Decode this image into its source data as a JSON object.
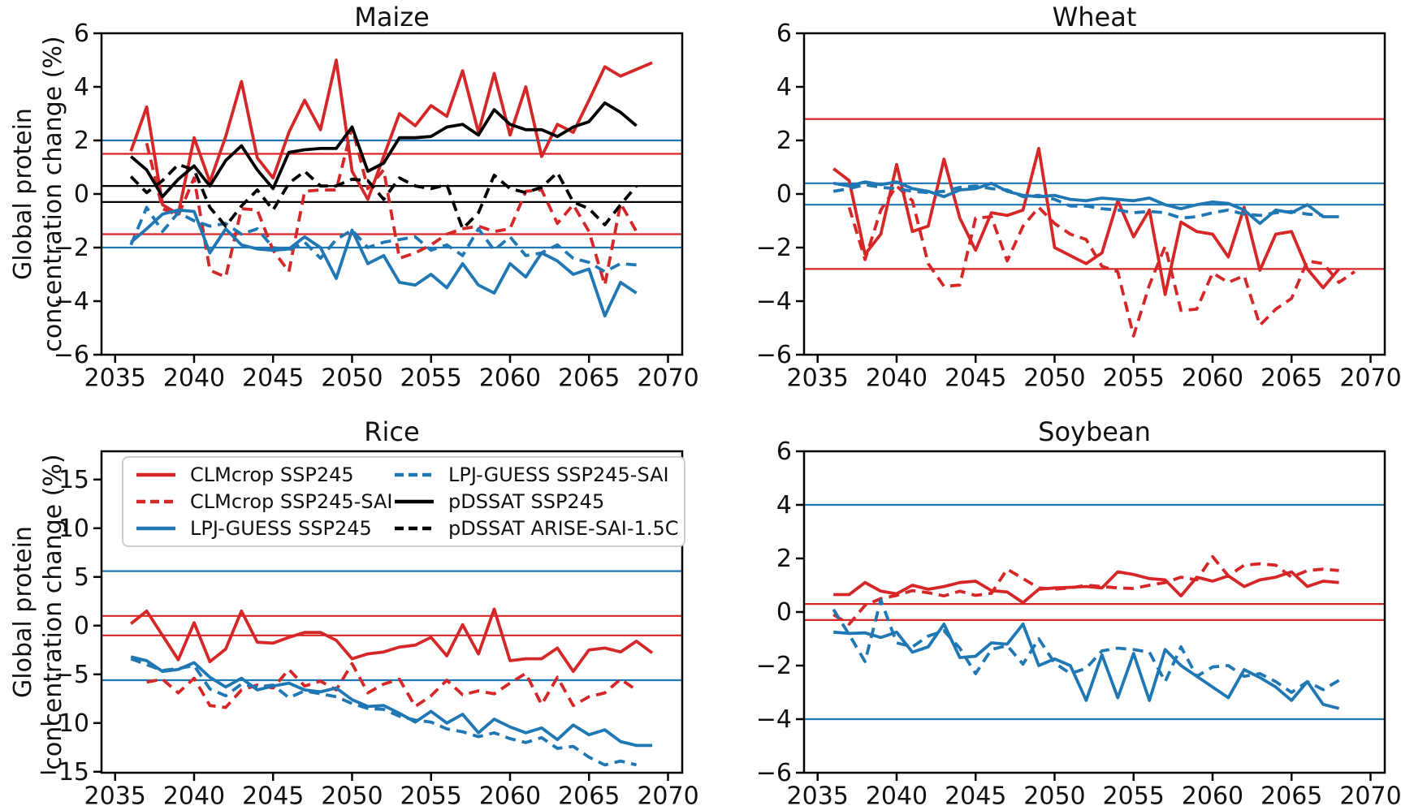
{
  "figure": {
    "background": "#ffffff",
    "ylabel_line1": "Global protein",
    "ylabel_line2": "concentration change (%)"
  },
  "colors": {
    "red": "#d62728",
    "blue": "#1f77b4",
    "black": "#000000"
  },
  "legend": {
    "position": "rice-panel-top",
    "entries": [
      {
        "label": "CLMcrop SSP245",
        "color": "red",
        "style": "solid"
      },
      {
        "label": "CLMcrop SSP245-SAI",
        "color": "red",
        "style": "dashed"
      },
      {
        "label": "LPJ-GUESS SSP245",
        "color": "blue",
        "style": "solid"
      },
      {
        "label": "LPJ-GUESS SSP245-SAI",
        "color": "blue",
        "style": "dashed"
      },
      {
        "label": "pDSSAT SSP245",
        "color": "black",
        "style": "solid"
      },
      {
        "label": "pDSSAT ARISE-SAI-1.5C",
        "color": "black",
        "style": "dashed"
      }
    ]
  },
  "x_axis": {
    "lim": [
      2034.14,
      2070.9
    ],
    "tick_values": [
      2035,
      2040,
      2045,
      2050,
      2055,
      2060,
      2065,
      2070
    ],
    "tick_labels": [
      "2035",
      "2040",
      "2045",
      "2050",
      "2055",
      "2060",
      "2065",
      "2070"
    ]
  },
  "years": [
    2036,
    2037,
    2038,
    2039,
    2040,
    2041,
    2042,
    2043,
    2044,
    2045,
    2046,
    2047,
    2048,
    2049,
    2050,
    2051,
    2052,
    2053,
    2054,
    2055,
    2056,
    2057,
    2058,
    2059,
    2060,
    2061,
    2062,
    2063,
    2064,
    2065,
    2066,
    2067,
    2068,
    2069
  ],
  "chart_data": [
    {
      "id": "maize",
      "title": "Maize",
      "type": "line",
      "grid": {
        "row": 0,
        "col": 0
      },
      "y_axis": {
        "lim": [
          -6,
          6
        ],
        "tick_values": [
          6,
          4,
          2,
          0,
          -2,
          -4,
          -6
        ],
        "tick_labels": [
          "6",
          "4",
          "2",
          "0",
          "−2",
          "−4",
          "−6"
        ]
      },
      "ref_lines": [
        {
          "color": "blue",
          "value": 2.0
        },
        {
          "color": "red",
          "value": 1.5
        },
        {
          "color": "black",
          "value": 0.3
        },
        {
          "color": "black",
          "value": -0.3
        },
        {
          "color": "red",
          "value": -1.5
        },
        {
          "color": "blue",
          "value": -2.0
        }
      ],
      "series": [
        {
          "name": "CLMcrop SSP245",
          "color": "red",
          "style": "solid",
          "values": [
            1.6,
            3.25,
            -0.4,
            -0.75,
            2.1,
            0.45,
            2.15,
            4.2,
            1.35,
            0.6,
            2.3,
            3.5,
            2.4,
            5.0,
            0.85,
            -0.2,
            1.4,
            3.0,
            2.55,
            3.3,
            2.9,
            4.6,
            2.3,
            4.5,
            2.2,
            4.0,
            1.4,
            2.6,
            2.3,
            3.5,
            4.75,
            4.4,
            4.65,
            4.9
          ]
        },
        {
          "name": "CLMcrop SSP245-SAI",
          "color": "red",
          "style": "dashed",
          "values": [
            null,
            1.9,
            -0.55,
            -0.8,
            0.6,
            -2.85,
            -3.1,
            -0.55,
            -0.6,
            -2.1,
            -2.9,
            0.1,
            0.15,
            0.15,
            2.5,
            0.2,
            0.9,
            -2.4,
            -2.2,
            -1.9,
            -1.5,
            -1.3,
            -1.2,
            -1.4,
            -1.3,
            0.1,
            0.15,
            -1.1,
            -0.4,
            -1.4,
            -3.4,
            -0.35,
            -1.4,
            null
          ]
        },
        {
          "name": "LPJ-GUESS SSP245",
          "color": "blue",
          "style": "solid",
          "values": [
            -1.8,
            -1.3,
            -0.75,
            -0.6,
            -0.65,
            -2.2,
            -1.3,
            -1.9,
            -2.05,
            -2.1,
            -2.05,
            -1.6,
            -2.0,
            -3.15,
            -1.35,
            -2.6,
            -2.3,
            -3.3,
            -3.4,
            -3.0,
            -3.5,
            -2.6,
            -3.4,
            -3.7,
            -2.6,
            -3.1,
            -2.2,
            -2.5,
            -3.0,
            -2.8,
            -4.55,
            -3.3,
            -3.7,
            null
          ]
        },
        {
          "name": "LPJ-GUESS SSP245-SAI",
          "color": "blue",
          "style": "dashed",
          "values": [
            -1.9,
            -0.5,
            -1.4,
            -0.7,
            -1.0,
            -1.2,
            -1.1,
            -1.5,
            -1.3,
            -2.0,
            -2.1,
            -1.8,
            -2.4,
            -1.7,
            -1.35,
            -2.0,
            -1.8,
            -1.7,
            -1.6,
            -2.1,
            -1.9,
            -2.3,
            -1.3,
            -2.1,
            -1.6,
            -2.3,
            -2.2,
            -1.9,
            -2.4,
            -2.55,
            -2.9,
            -2.6,
            -2.65,
            null
          ]
        },
        {
          "name": "pDSSAT SSP245",
          "color": "black",
          "style": "solid",
          "values": [
            1.4,
            0.9,
            -0.1,
            0.55,
            1.05,
            0.3,
            1.25,
            1.8,
            0.9,
            0.2,
            1.55,
            1.65,
            1.7,
            1.7,
            2.5,
            0.85,
            1.15,
            2.1,
            2.1,
            2.15,
            2.5,
            2.6,
            2.2,
            3.15,
            2.6,
            2.4,
            2.4,
            2.15,
            2.5,
            2.7,
            3.4,
            3.05,
            2.55,
            null
          ]
        },
        {
          "name": "pDSSAT ARISE-SAI-1.5C",
          "color": "black",
          "style": "dashed",
          "values": [
            0.65,
            0.05,
            0.5,
            1.1,
            0.9,
            -0.5,
            -1.2,
            -0.45,
            0.15,
            -0.6,
            0.4,
            0.85,
            0.3,
            0.3,
            0.55,
            0.5,
            -0.2,
            0.6,
            0.3,
            0.2,
            0.35,
            -1.3,
            -0.7,
            0.7,
            0.2,
            0.05,
            0.25,
            0.8,
            -0.3,
            -0.55,
            -1.15,
            -0.4,
            0.3,
            null
          ]
        }
      ]
    },
    {
      "id": "wheat",
      "title": "Wheat",
      "type": "line",
      "grid": {
        "row": 0,
        "col": 1
      },
      "y_axis": {
        "lim": [
          -6,
          6
        ],
        "tick_values": [
          6,
          4,
          2,
          0,
          -2,
          -4,
          -6
        ],
        "tick_labels": [
          "6",
          "4",
          "2",
          "0",
          "−2",
          "−4",
          "−6"
        ]
      },
      "ref_lines": [
        {
          "color": "red",
          "value": 2.8
        },
        {
          "color": "blue",
          "value": 0.4
        },
        {
          "color": "blue",
          "value": -0.4
        },
        {
          "color": "red",
          "value": -2.8
        }
      ],
      "series": [
        {
          "name": "CLMcrop SSP245",
          "color": "red",
          "style": "solid",
          "values": [
            0.95,
            0.5,
            -2.25,
            -1.5,
            1.1,
            -1.4,
            -1.2,
            1.3,
            -0.9,
            -2.1,
            -0.7,
            -0.8,
            -0.6,
            1.7,
            -2.0,
            -2.3,
            -2.6,
            -2.2,
            -0.25,
            -1.6,
            -0.6,
            -3.75,
            -1.05,
            -1.4,
            -1.5,
            -2.35,
            -0.5,
            -2.85,
            -1.5,
            -1.4,
            -2.8,
            -3.5,
            -2.8,
            null
          ]
        },
        {
          "name": "CLMcrop SSP245-SAI",
          "color": "red",
          "style": "dashed",
          "values": [
            null,
            -0.5,
            -2.45,
            -0.6,
            0.3,
            -0.25,
            -2.6,
            -3.45,
            -3.4,
            -0.9,
            -0.85,
            -2.5,
            -1.2,
            -0.5,
            -1.1,
            -1.5,
            -1.7,
            -2.7,
            -2.9,
            -5.3,
            -3.4,
            -1.95,
            -4.35,
            -4.3,
            -2.95,
            -3.3,
            -3.05,
            -4.9,
            -4.3,
            -3.9,
            -2.5,
            -2.6,
            -3.3,
            -2.9
          ]
        },
        {
          "name": "LPJ-GUESS SSP245",
          "color": "blue",
          "style": "solid",
          "values": [
            0.4,
            0.3,
            0.45,
            0.35,
            0.45,
            0.2,
            0.1,
            -0.1,
            0.15,
            0.2,
            0.4,
            0.1,
            -0.05,
            -0.1,
            -0.05,
            -0.2,
            -0.25,
            -0.15,
            -0.2,
            -0.25,
            -0.15,
            -0.4,
            -0.55,
            -0.4,
            -0.3,
            -0.35,
            -0.6,
            -1.1,
            -0.6,
            -0.7,
            -0.4,
            -0.85,
            -0.85,
            null
          ]
        },
        {
          "name": "LPJ-GUESS SSP245-SAI",
          "color": "blue",
          "style": "dashed",
          "values": [
            0.1,
            0.2,
            0.35,
            0.25,
            0.2,
            0.1,
            0.05,
            0.1,
            0.25,
            0.3,
            0.2,
            0.15,
            -0.1,
            -0.05,
            -0.2,
            -0.45,
            -0.45,
            -0.55,
            -0.6,
            -0.7,
            -0.65,
            -0.7,
            -0.9,
            -0.85,
            -0.7,
            -0.6,
            -0.75,
            -0.8,
            -0.7,
            -0.65,
            -0.75,
            -0.8,
            null,
            null
          ]
        }
      ]
    },
    {
      "id": "rice",
      "title": "Rice",
      "type": "line",
      "grid": {
        "row": 1,
        "col": 0
      },
      "y_axis": {
        "lim": [
          -15.1,
          17.9
        ],
        "tick_values": [
          15,
          10,
          5,
          0,
          -5,
          -10,
          -15
        ],
        "tick_labels": [
          "15",
          "10",
          "5",
          "0",
          "−5",
          "−10",
          "−15"
        ]
      },
      "ref_lines": [
        {
          "color": "blue",
          "value": 5.6
        },
        {
          "color": "red",
          "value": 1.0
        },
        {
          "color": "red",
          "value": -1.0
        },
        {
          "color": "blue",
          "value": -5.6
        }
      ],
      "series": [
        {
          "name": "CLMcrop SSP245",
          "color": "red",
          "style": "solid",
          "values": [
            0.2,
            1.5,
            -1.0,
            -3.5,
            0.3,
            -3.7,
            -2.4,
            1.5,
            -1.7,
            -1.8,
            -1.2,
            -0.7,
            -0.7,
            -1.5,
            -3.4,
            -2.9,
            -2.7,
            -2.2,
            -2.0,
            -1.2,
            -3.1,
            0.1,
            -2.9,
            1.7,
            -3.6,
            -3.4,
            -3.4,
            -2.3,
            -4.7,
            -2.5,
            -2.3,
            -2.7,
            -1.6,
            -2.8
          ]
        },
        {
          "name": "CLMcrop SSP245-SAI",
          "color": "red",
          "style": "dashed",
          "values": [
            null,
            -5.8,
            -5.5,
            -6.9,
            -5.4,
            -8.2,
            -8.4,
            -6.6,
            -6.1,
            -6.4,
            -4.5,
            -6.2,
            -5.7,
            -6.6,
            -3.9,
            -6.9,
            -6.0,
            -5.5,
            -8.3,
            -7.2,
            -5.6,
            -7.1,
            -6.7,
            -7.0,
            -5.9,
            -4.9,
            -8.1,
            -5.3,
            -8.2,
            -7.3,
            -6.9,
            -5.5,
            -6.6,
            null
          ]
        },
        {
          "name": "LPJ-GUESS SSP245",
          "color": "blue",
          "style": "solid",
          "values": [
            -3.2,
            -3.6,
            -4.7,
            -4.5,
            -3.8,
            -5.3,
            -6.3,
            -5.4,
            -6.6,
            -6.2,
            -5.9,
            -6.6,
            -6.8,
            -6.4,
            -7.6,
            -8.3,
            -8.2,
            -9.0,
            -9.9,
            -8.8,
            -10.0,
            -9.1,
            -11.0,
            -9.6,
            -10.4,
            -11.0,
            -10.5,
            -11.7,
            -10.2,
            -11.2,
            -10.7,
            -11.9,
            -12.3,
            -12.3
          ]
        },
        {
          "name": "LPJ-GUESS SSP245-SAI",
          "color": "blue",
          "style": "dashed",
          "values": [
            -3.4,
            -4.0,
            -4.6,
            -4.4,
            -4.1,
            -6.5,
            -7.2,
            -6.0,
            -6.3,
            -6.1,
            -7.4,
            -6.7,
            -7.0,
            -7.3,
            -8.0,
            -8.5,
            -8.6,
            -9.3,
            -9.7,
            -9.9,
            -10.6,
            -10.9,
            -11.4,
            -11.0,
            -11.6,
            -12.0,
            -11.5,
            -12.6,
            -12.4,
            -13.5,
            -14.3,
            -13.9,
            -14.3,
            null
          ]
        }
      ]
    },
    {
      "id": "soybean",
      "title": "Soybean",
      "type": "line",
      "grid": {
        "row": 1,
        "col": 1
      },
      "y_axis": {
        "lim": [
          -6,
          6
        ],
        "tick_values": [
          6,
          4,
          2,
          0,
          -2,
          -4,
          -6
        ],
        "tick_labels": [
          "6",
          "4",
          "2",
          "0",
          "−2",
          "−4",
          "−6"
        ]
      },
      "ref_lines": [
        {
          "color": "blue",
          "value": 4.0
        },
        {
          "color": "red",
          "value": 0.3
        },
        {
          "color": "red",
          "value": -0.3
        },
        {
          "color": "blue",
          "value": -4.0
        }
      ],
      "series": [
        {
          "name": "CLMcrop SSP245",
          "color": "red",
          "style": "solid",
          "values": [
            0.65,
            0.65,
            1.1,
            0.78,
            0.68,
            1.0,
            0.85,
            0.95,
            1.1,
            1.15,
            0.8,
            0.75,
            0.35,
            0.85,
            0.9,
            0.92,
            0.95,
            0.9,
            1.5,
            1.4,
            1.25,
            1.2,
            0.6,
            1.3,
            1.15,
            1.35,
            0.95,
            1.2,
            1.3,
            1.5,
            0.95,
            1.15,
            1.1,
            null
          ]
        },
        {
          "name": "CLMcrop SSP245-SAI",
          "color": "red",
          "style": "dashed",
          "values": [
            -0.1,
            -0.45,
            0.25,
            0.5,
            0.62,
            0.8,
            0.72,
            0.6,
            0.78,
            0.62,
            0.7,
            1.6,
            1.25,
            0.9,
            0.85,
            0.9,
            1.0,
            0.95,
            0.9,
            0.88,
            1.0,
            1.1,
            1.3,
            1.2,
            2.07,
            1.35,
            1.75,
            1.8,
            1.75,
            1.3,
            1.55,
            1.6,
            1.55,
            null
          ]
        },
        {
          "name": "LPJ-GUESS SSP245",
          "color": "blue",
          "style": "solid",
          "values": [
            -0.75,
            -0.8,
            -0.78,
            -0.95,
            -0.75,
            -1.5,
            -1.3,
            -0.45,
            -1.7,
            -1.65,
            -1.15,
            -1.2,
            -0.45,
            -2.0,
            -1.75,
            -2.0,
            -3.3,
            -1.6,
            -3.2,
            -1.55,
            -3.3,
            -1.4,
            -2.0,
            -2.4,
            -2.8,
            -3.2,
            -2.15,
            -2.45,
            -2.8,
            -3.3,
            -2.6,
            -3.45,
            -3.6,
            null
          ]
        },
        {
          "name": "LPJ-GUESS SSP245-SAI",
          "color": "blue",
          "style": "dashed",
          "values": [
            0.1,
            -0.85,
            -1.85,
            0.45,
            -1.15,
            -1.3,
            -0.9,
            -0.7,
            -1.35,
            -2.3,
            -1.4,
            -1.25,
            -1.95,
            -1.0,
            -1.9,
            -2.3,
            -2.1,
            -1.45,
            -1.35,
            -1.4,
            -1.5,
            -2.6,
            -1.3,
            -2.4,
            -2.05,
            -2.0,
            -2.4,
            -2.3,
            -2.6,
            -3.0,
            -2.6,
            -2.9,
            -2.55,
            null
          ]
        }
      ]
    }
  ]
}
